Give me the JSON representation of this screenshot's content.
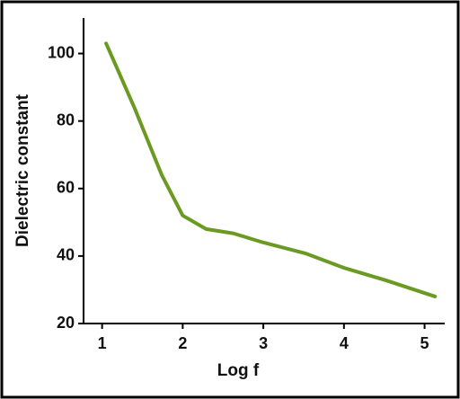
{
  "chart_data": {
    "type": "line",
    "x_label": "Log f",
    "y_label": "Dielectric constant",
    "x": [
      1.05,
      1.4,
      1.74,
      2.0,
      2.29,
      2.63,
      3.0,
      3.52,
      4.0,
      4.52,
      5.13
    ],
    "series": [
      {
        "color": "#6b9a22",
        "values": [
          103,
          84,
          64,
          52,
          48,
          46.7,
          44,
          40.8,
          36.5,
          32.8,
          28
        ]
      }
    ],
    "xlim": [
      0.77,
      5.25
    ],
    "ylim": [
      20,
      110
    ],
    "xticks": [
      1,
      2,
      3,
      4,
      5
    ],
    "yticks": [
      20,
      40,
      60,
      80,
      100
    ],
    "grid": false
  }
}
